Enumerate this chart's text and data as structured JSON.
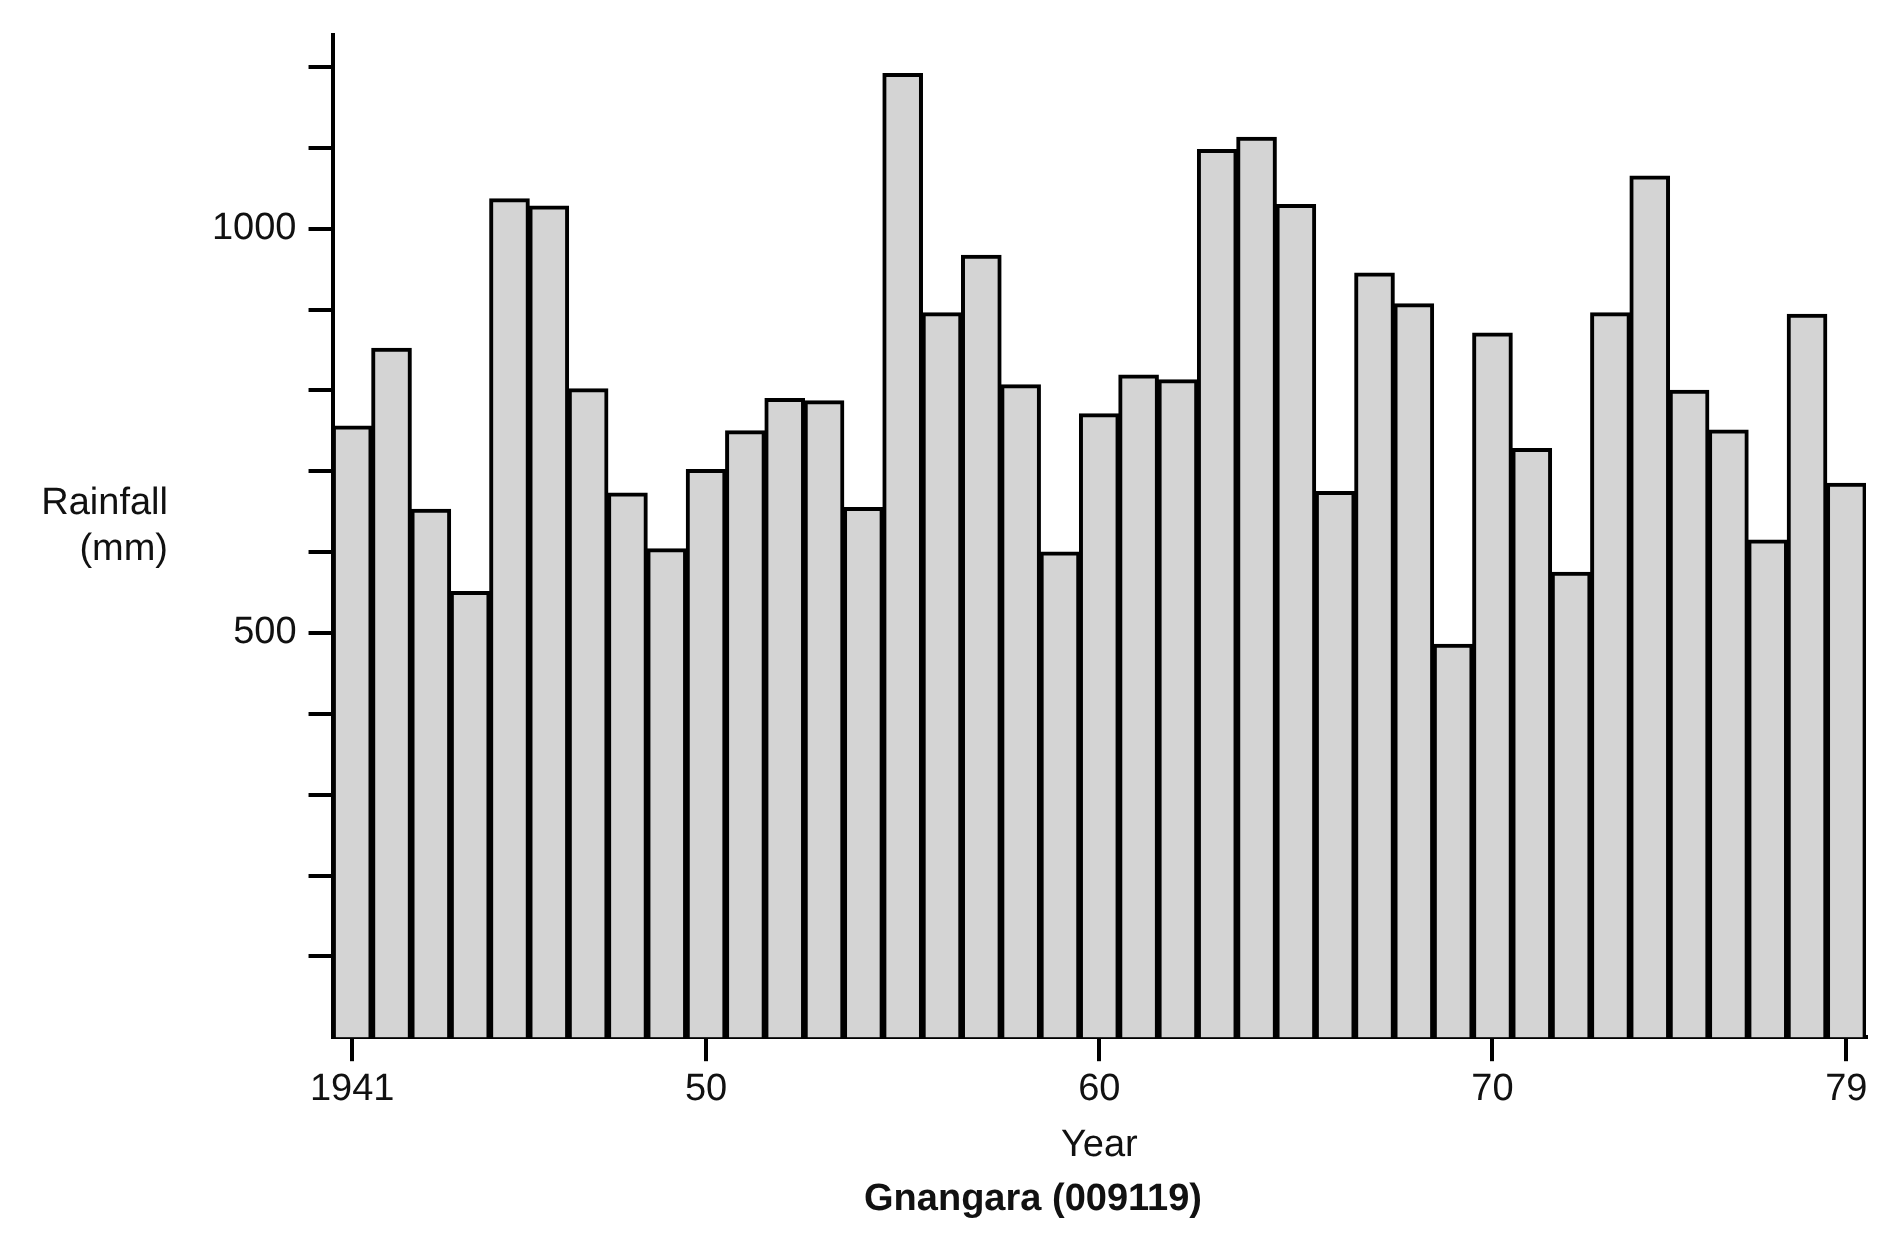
{
  "chart_data": {
    "type": "bar",
    "title": "Gnangara (009119)",
    "xlabel": "Year",
    "ylabel": "Rainfall (mm)",
    "categories": [
      "1941",
      null,
      null,
      null,
      null,
      null,
      null,
      null,
      null,
      "50",
      null,
      null,
      null,
      null,
      null,
      null,
      null,
      null,
      null,
      "60",
      null,
      null,
      null,
      null,
      null,
      null,
      null,
      null,
      null,
      "70",
      null,
      null,
      null,
      null,
      null,
      null,
      null,
      null,
      "79"
    ],
    "values": [
      756,
      852,
      653,
      551,
      1037,
      1028,
      802,
      673,
      604,
      702,
      750,
      790,
      787,
      655,
      1192,
      896,
      967,
      807,
      600,
      771,
      819,
      813,
      1098,
      1113,
      1030,
      675,
      945,
      907,
      486,
      871,
      728,
      575,
      896,
      1065,
      800,
      751,
      615,
      894,
      685
    ],
    "color": "#d4d4d4",
    "ylim": [
      0,
      1240
    ],
    "yticks": [
      {
        "value": 100,
        "label": null
      },
      {
        "value": 200,
        "label": null
      },
      {
        "value": 300,
        "label": null
      },
      {
        "value": 400,
        "label": null
      },
      500,
      {
        "value": 600,
        "label": null
      },
      {
        "value": 700,
        "label": null
      },
      {
        "value": 800,
        "label": null
      },
      {
        "value": 900,
        "label": null
      },
      1000,
      {
        "value": 1100,
        "label": null
      },
      {
        "value": 1200,
        "label": null
      }
    ],
    "grid": false,
    "legend": false
  }
}
